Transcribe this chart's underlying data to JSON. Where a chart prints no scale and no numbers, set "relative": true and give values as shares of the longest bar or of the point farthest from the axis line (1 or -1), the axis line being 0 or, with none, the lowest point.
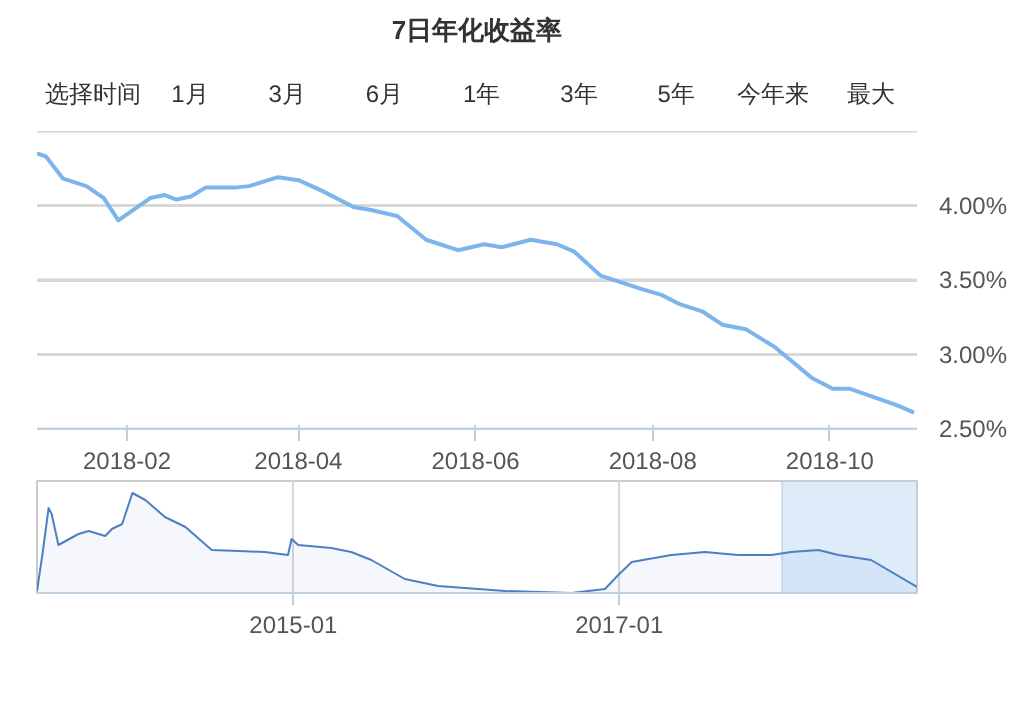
{
  "chart_data": [
    {
      "type": "line",
      "title": "7日年化收益率",
      "annotations": [
        "选择时间",
        "1月",
        "3月",
        "6月",
        "1年",
        "3年",
        "5年",
        "今年来",
        "最大"
      ],
      "xlim": [
        "2018-01-01",
        "2018-10-31"
      ],
      "xticks": [
        "2018-02",
        "2018-04",
        "2018-06",
        "2018-08",
        "2018-10"
      ],
      "ylim": [
        2.5,
        4.5
      ],
      "yticks": [
        {
          "value": 2.5,
          "label": "2.50%"
        },
        {
          "value": 3.0,
          "label": "3.00%"
        },
        {
          "value": 3.5,
          "label": "3.50%"
        },
        {
          "value": 4.0,
          "label": "4.00%"
        },
        {
          "value": 4.5,
          "label": null
        }
      ],
      "grid": "y",
      "series": [
        {
          "color": "#7cb5ec",
          "x": [
            "2018-01-01",
            "2018-01-04",
            "2018-01-10",
            "2018-01-18",
            "2018-01-24",
            "2018-01-29",
            "2018-02-09",
            "2018-02-14",
            "2018-02-18",
            "2018-02-23",
            "2018-02-28",
            "2018-03-10",
            "2018-03-15",
            "2018-03-25",
            "2018-04-01",
            "2018-04-09",
            "2018-04-20",
            "2018-04-26",
            "2018-05-05",
            "2018-05-15",
            "2018-05-26",
            "2018-06-04",
            "2018-06-10",
            "2018-06-20",
            "2018-06-29",
            "2018-07-05",
            "2018-07-14",
            "2018-07-28",
            "2018-08-04",
            "2018-08-10",
            "2018-08-18",
            "2018-08-25",
            "2018-09-02",
            "2018-09-12",
            "2018-09-25",
            "2018-10-02",
            "2018-10-08",
            "2018-10-24",
            "2018-10-30"
          ],
          "values": [
            4.35,
            4.33,
            4.18,
            4.13,
            4.05,
            3.9,
            4.05,
            4.07,
            4.04,
            4.06,
            4.12,
            4.12,
            4.13,
            4.19,
            4.17,
            4.1,
            3.99,
            3.97,
            3.93,
            3.77,
            3.7,
            3.74,
            3.72,
            3.77,
            3.74,
            3.69,
            3.53,
            3.44,
            3.4,
            3.34,
            3.29,
            3.2,
            3.17,
            3.05,
            2.84,
            2.77,
            2.77,
            2.66,
            2.61
          ]
        }
      ]
    },
    {
      "type": "area",
      "relative": true,
      "grid": "x",
      "tick_labels": "x",
      "xlim": [
        "2013-06-05",
        "2018-10-31"
      ],
      "xticks": [
        "2015-01",
        "2017-01"
      ],
      "bands": [
        {
          "axis": "x",
          "from": "2018-01-01",
          "to": "2018-10-31",
          "color": "#d6e6f7"
        }
      ],
      "series": [
        {
          "color": "#4d7fc4",
          "x": [
            "2013-06-05",
            "2013-06-17",
            "2013-07-01",
            "2013-07-08",
            "2013-07-23",
            "2013-09-06",
            "2013-09-29",
            "2013-11-05",
            "2013-11-20",
            "2013-12-13",
            "2014-01-05",
            "2014-02-03",
            "2014-03-19",
            "2014-05-04",
            "2014-07-02",
            "2014-08-31",
            "2014-10-29",
            "2014-12-20",
            "2014-12-28",
            "2015-01-12",
            "2015-03-27",
            "2015-05-11",
            "2015-06-25",
            "2015-09-08",
            "2015-11-22",
            "2016-04-20",
            "2016-09-16",
            "2016-11-30",
            "2016-12-30",
            "2017-01-29",
            "2017-04-28",
            "2017-07-12",
            "2017-09-25",
            "2017-12-08",
            "2018-01-22",
            "2018-03-24",
            "2018-05-08",
            "2018-07-20",
            "2018-10-31"
          ],
          "values": [
            0.02,
            0.38,
            0.85,
            0.79,
            0.48,
            0.59,
            0.62,
            0.57,
            0.64,
            0.69,
            1.0,
            0.93,
            0.76,
            0.66,
            0.43,
            0.42,
            0.41,
            0.38,
            0.54,
            0.48,
            0.45,
            0.41,
            0.33,
            0.14,
            0.07,
            0.02,
            0.0,
            0.04,
            0.18,
            0.31,
            0.38,
            0.41,
            0.38,
            0.38,
            0.41,
            0.43,
            0.38,
            0.33,
            0.06
          ]
        }
      ]
    }
  ]
}
